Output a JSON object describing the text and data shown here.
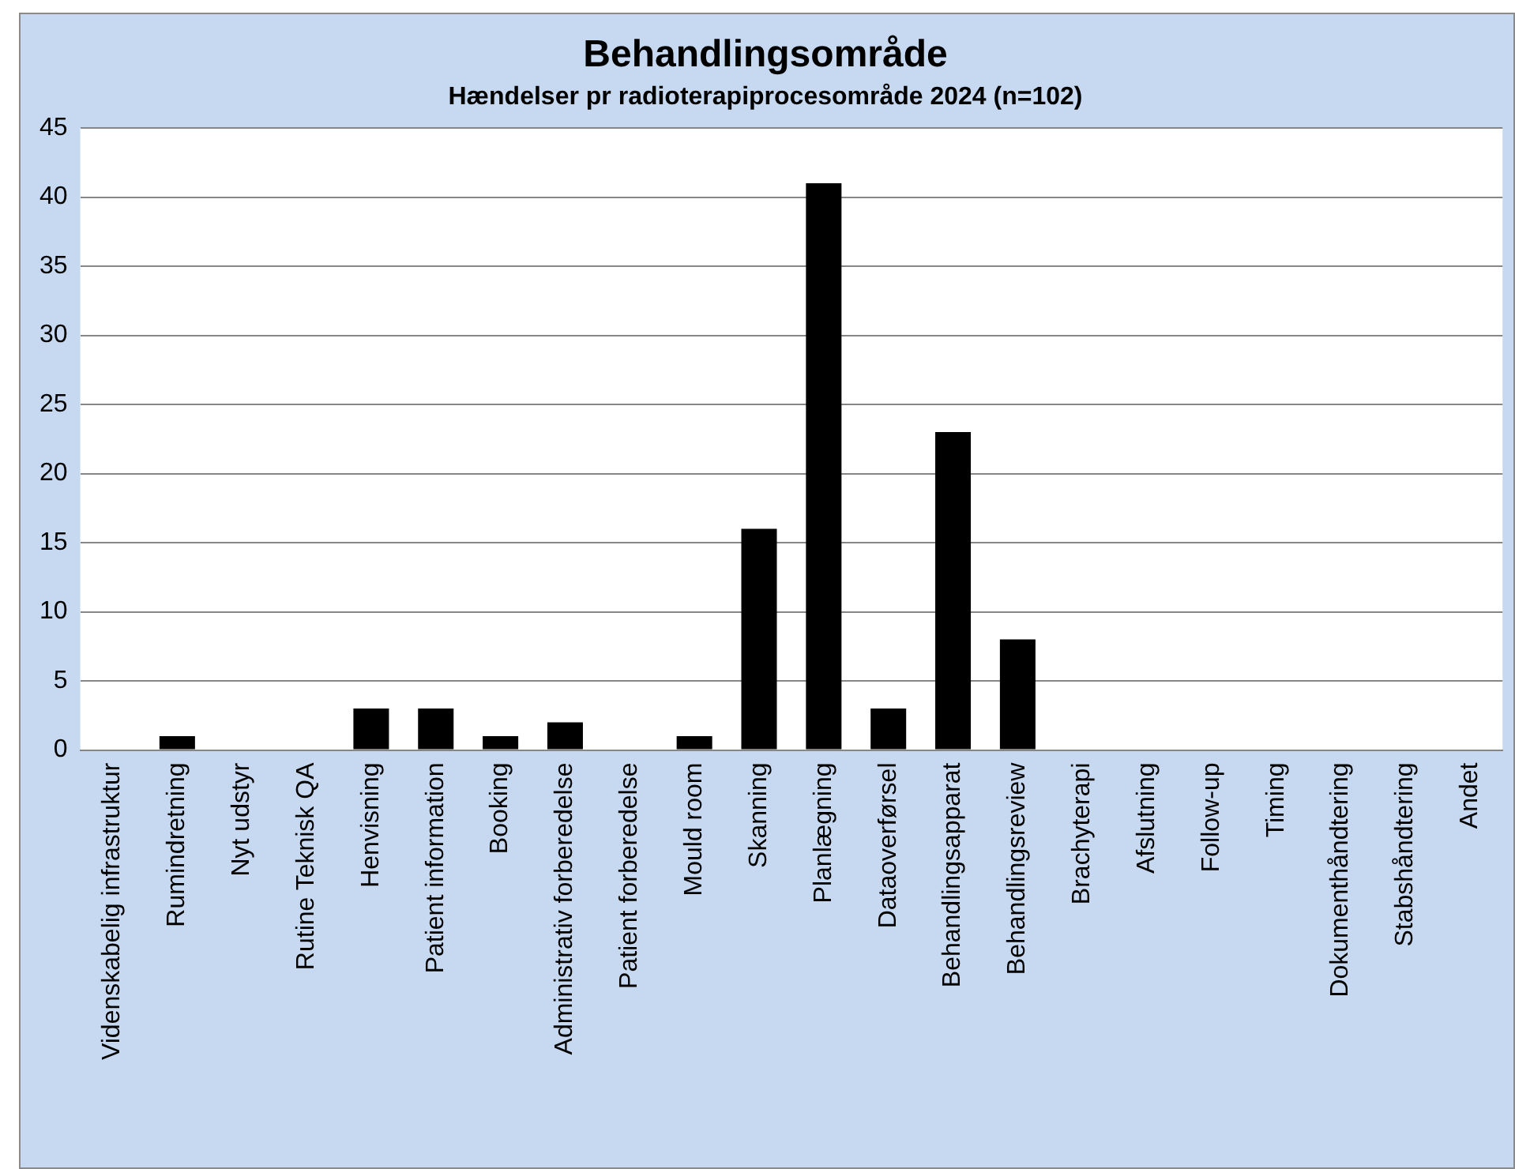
{
  "chart_data": {
    "type": "bar",
    "title": "Behandlingsområde",
    "subtitle": "Hændelser pr radioterapiprocesområde 2024 (n=102)",
    "categories": [
      "Videnskabelig infrastruktur",
      "Rumindretning",
      "Nyt udstyr",
      "Rutine Teknisk QA",
      "Henvisning",
      "Patient information",
      "Booking",
      "Administrativ forberedelse",
      "Patient forberedelse",
      "Mould room",
      "Skanning",
      "Planlægning",
      "Dataoverførsel",
      "Behandlingsapparat",
      "Behandlingsreview",
      "Brachyterapi",
      "Afslutning",
      "Follow-up",
      "Timing",
      "Dokumenthåndtering",
      "Stabshåndtering",
      "Andet"
    ],
    "values": [
      0,
      1,
      0,
      0,
      3,
      3,
      1,
      2,
      0,
      1,
      16,
      41,
      3,
      23,
      8,
      0,
      0,
      0,
      0,
      0,
      0,
      0
    ],
    "color": "#000000",
    "ylim": [
      0,
      45
    ],
    "yticks": [
      0,
      5,
      10,
      15,
      20,
      25,
      30,
      35,
      40,
      45
    ],
    "grid": "y",
    "legend": false
  }
}
